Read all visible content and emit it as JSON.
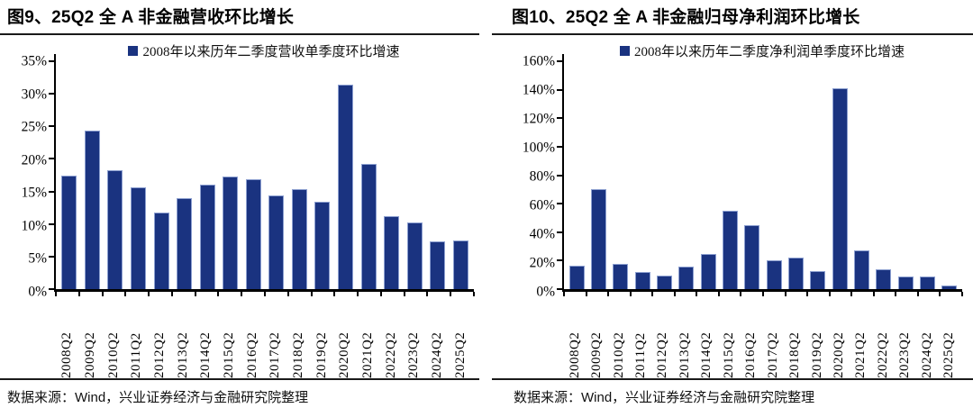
{
  "page": {
    "source_note": "数据来源：Wind，兴业证券经济与金融研究院整理"
  },
  "colors": {
    "bar_fill": "#1A3380",
    "bar_edge": "#8C9FD0",
    "axis": "#000000"
  },
  "chart_data": [
    {
      "type": "bar",
      "title": "图9、25Q2 全 A 非金融营收环比增长",
      "legend": "2008年以来历年二季度营收单季度环比增速",
      "legend_position": "top",
      "grid": false,
      "xlabel": "",
      "ylabel": "",
      "ytick_format": "percent",
      "ylim": [
        0,
        35
      ],
      "ytick_step": 5,
      "categories": [
        "2008Q2",
        "2009Q2",
        "2010Q2",
        "2011Q2",
        "2012Q2",
        "2013Q2",
        "2014Q2",
        "2015Q2",
        "2016Q2",
        "2017Q2",
        "2018Q2",
        "2019Q2",
        "2020Q2",
        "2021Q2",
        "2022Q2",
        "2023Q2",
        "2024Q2",
        "2025Q2"
      ],
      "values": [
        17.4,
        24.4,
        18.2,
        15.7,
        11.7,
        14.0,
        16.0,
        17.3,
        16.9,
        14.4,
        15.4,
        13.4,
        31.4,
        19.3,
        11.2,
        10.2,
        7.3,
        7.5
      ]
    },
    {
      "type": "bar",
      "title": "图10、25Q2 全 A 非金融归母净利润环比增长",
      "legend": "2008年以来历年二季度净利润单季度环比增速",
      "legend_position": "top",
      "grid": false,
      "xlabel": "",
      "ylabel": "",
      "ytick_format": "percent",
      "ylim": [
        0,
        160
      ],
      "ytick_step": 20,
      "categories": [
        "2008Q2",
        "2009Q2",
        "2010Q2",
        "2011Q2",
        "2012Q2",
        "2013Q2",
        "2014Q2",
        "2015Q2",
        "2016Q2",
        "2017Q2",
        "2018Q2",
        "2019Q2",
        "2020Q2",
        "2021Q2",
        "2022Q2",
        "2023Q2",
        "2024Q2",
        "2025Q2"
      ],
      "values": [
        16.5,
        70,
        17.5,
        12,
        9.5,
        16,
        24.5,
        55,
        45,
        20,
        22,
        12.5,
        141,
        27,
        14,
        9,
        9,
        2.5
      ]
    }
  ]
}
